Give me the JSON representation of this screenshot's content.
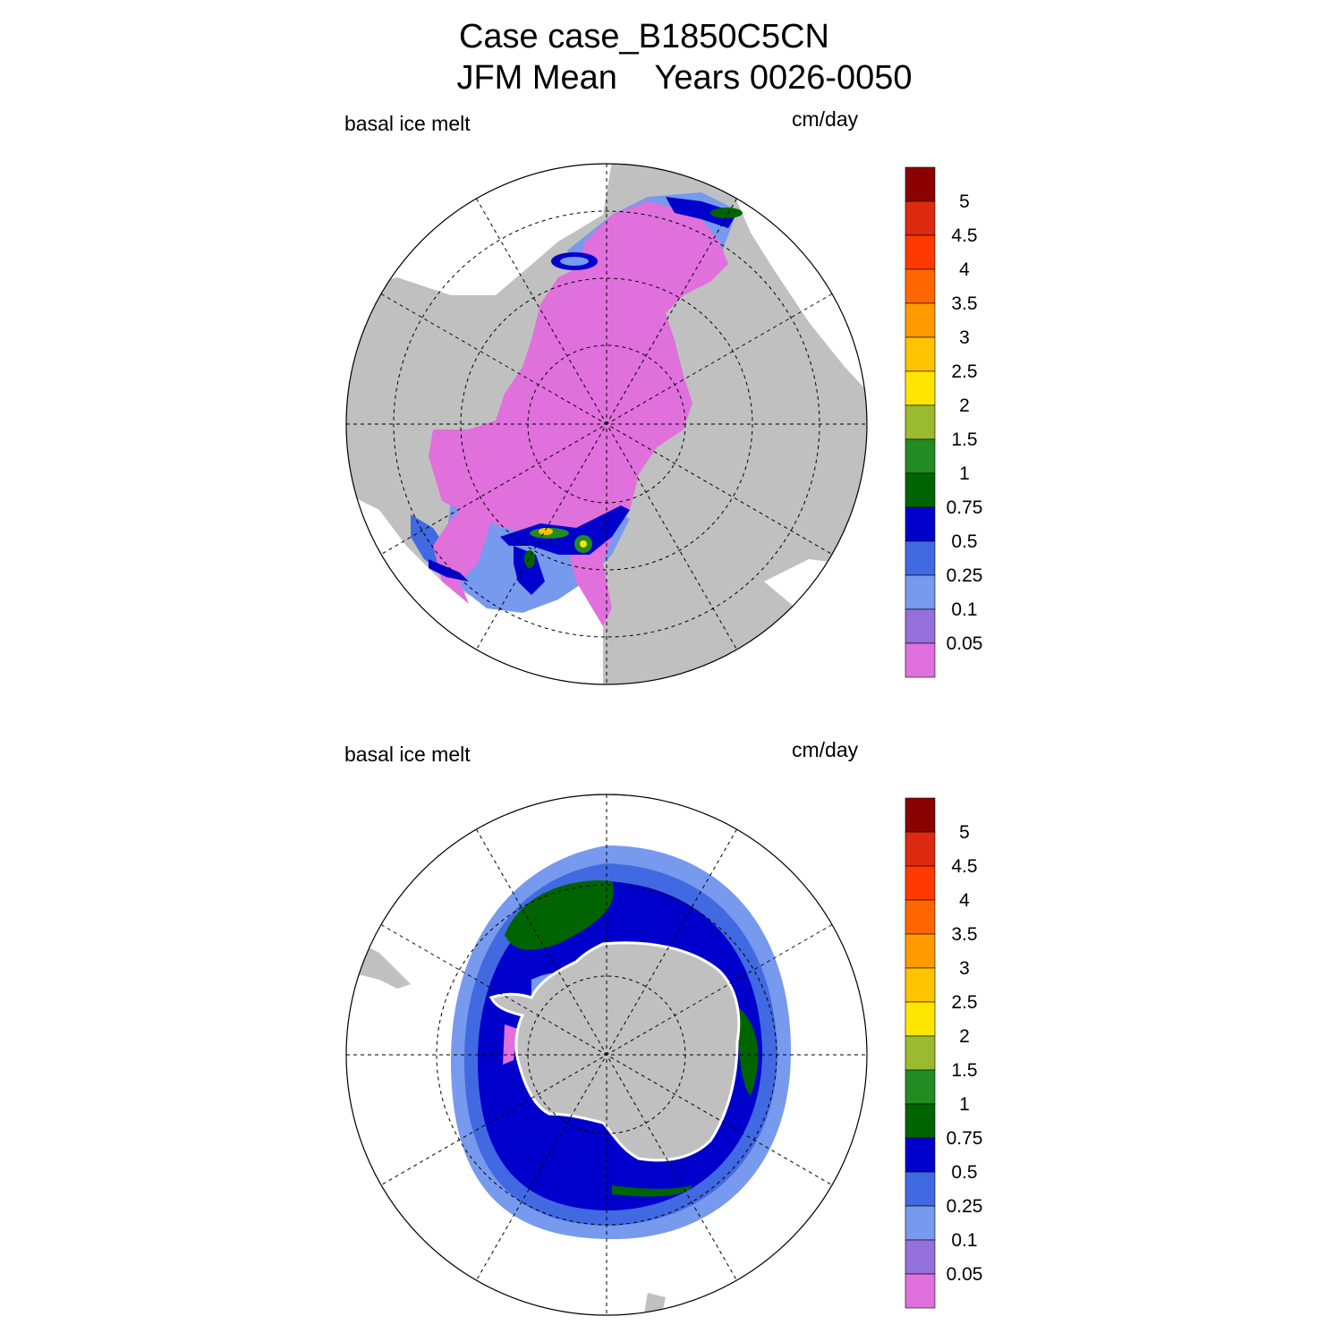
{
  "title": {
    "line1": "Case case_B1850C5CN",
    "line2": "JFM Mean    Years 0026-0050"
  },
  "panels": [
    {
      "left_label": "basal ice melt",
      "right_label": "cm/day",
      "hemisphere": "Northern Hemisphere polar projection"
    },
    {
      "left_label": "basal ice melt",
      "right_label": "cm/day",
      "hemisphere": "Southern Hemisphere polar projection"
    }
  ],
  "colorbar": {
    "levels": [
      "5",
      "4.5",
      "4",
      "3.5",
      "3",
      "2.5",
      "2",
      "1.5",
      "1",
      "0.75",
      "0.5",
      "0.25",
      "0.1",
      "0.05"
    ],
    "colors": [
      "#8b0000",
      "#dd2a10",
      "#ff3a00",
      "#ff6600",
      "#ff9a00",
      "#ffc400",
      "#ffe600",
      "#9aba30",
      "#228b22",
      "#006400",
      "#0000cd",
      "#4169e1",
      "#7799ee",
      "#9370db",
      "#e070db"
    ]
  },
  "colors": {
    "land": "#c0c0c0",
    "ocean_no_ice": "#ffffff",
    "grid": "#000000"
  }
}
